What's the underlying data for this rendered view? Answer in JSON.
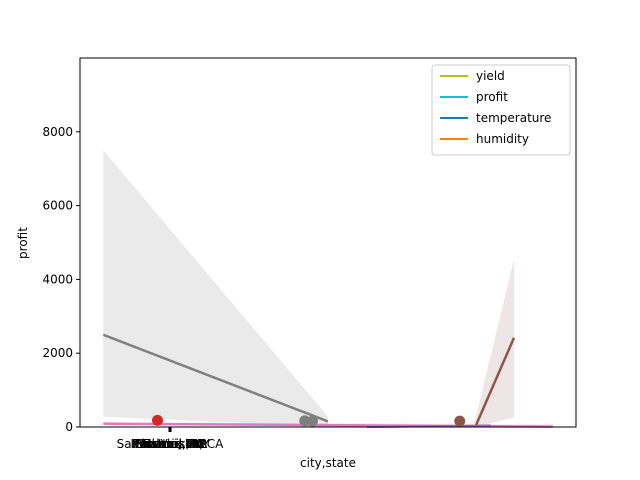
{
  "chart_data": {
    "type": "line",
    "xlabel": "city,state",
    "ylabel": "profit",
    "ylim": [
      0,
      10000
    ],
    "yticks": [
      0,
      2000,
      4000,
      6000,
      8000
    ],
    "xticklabels": [
      "San Francisco, CA",
      "Phoenix, AZ",
      "New York, NY",
      "Portland, OR",
      "Miami, FL",
      "Denver, CO",
      "Boston, MA",
      "Seattle, WA"
    ],
    "legend": {
      "position": "upper-right",
      "entries": [
        {
          "label": "yield",
          "color": "#bcbd22"
        },
        {
          "label": "profit",
          "color": "#17becf"
        },
        {
          "label": "temperature",
          "color": "#1f77b4"
        },
        {
          "label": "humidity",
          "color": "#ff7f0e"
        }
      ]
    },
    "colors": {
      "gray_band": "#bdbdbd",
      "gray_line": "#7f7f7f",
      "brown": "#8c564b",
      "pink": "#e377c2",
      "purple": "#9467bd",
      "red": "#d62728"
    },
    "series": [
      {
        "color": "#7f7f7f",
        "style": "regression",
        "x": [
          -0.3,
          1.15
        ],
        "y": [
          2500,
          150
        ],
        "ci_upper": [
          7500,
          280
        ],
        "ci_lower": [
          280,
          0
        ]
      },
      {
        "color": "#8c564b",
        "style": "regression",
        "x": [
          2.1,
          2.35
        ],
        "y": [
          0,
          2420
        ],
        "ci_upper": [
          200,
          4550
        ],
        "ci_lower": [
          0,
          260
        ]
      },
      {
        "color": "#e377c2",
        "style": "regression",
        "x": [
          -0.3,
          2.6
        ],
        "y": [
          90,
          10
        ],
        "ci_upper": [
          120,
          80
        ],
        "ci_lower": [
          50,
          0
        ]
      },
      {
        "color": "#9467bd",
        "style": "line",
        "x": [
          1.4,
          2.2
        ],
        "y": [
          0,
          40
        ]
      }
    ],
    "points": [
      {
        "x": 0.05,
        "y": 180,
        "color": "#d62728"
      },
      {
        "x": 1.0,
        "y": 170,
        "color": "#7f7f7f"
      },
      {
        "x": 1.05,
        "y": 160,
        "color": "#7f7f7f"
      },
      {
        "x": 2.0,
        "y": 160,
        "color": "#8c564b"
      }
    ]
  }
}
